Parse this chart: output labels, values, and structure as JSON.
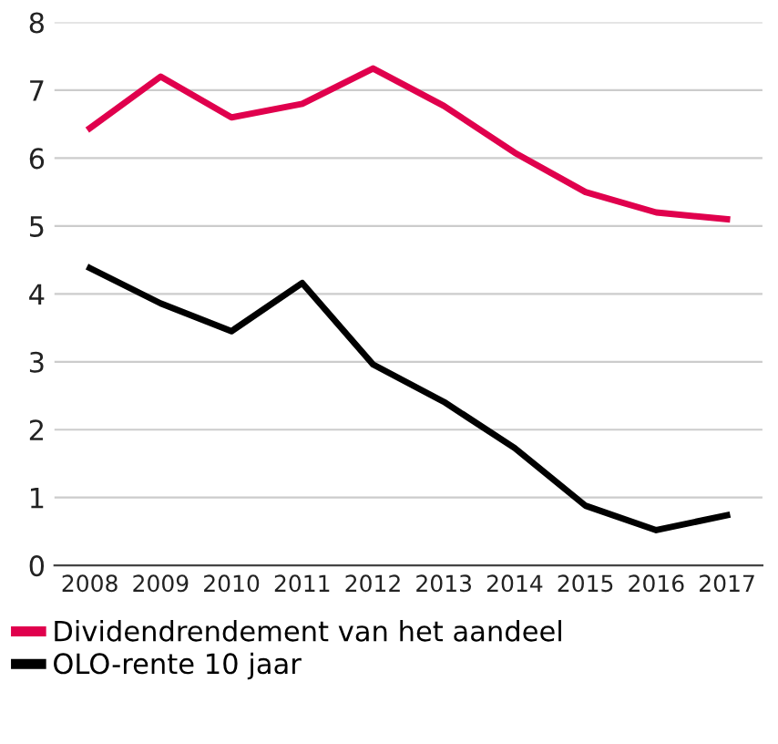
{
  "chart_data": {
    "type": "line",
    "categories": [
      "2008",
      "2009",
      "2010",
      "2011",
      "2012",
      "2013",
      "2014",
      "2015",
      "2016",
      "2017"
    ],
    "series": [
      {
        "name": "Dividendrendement van het aandeel",
        "color": "#e0004d",
        "values": [
          6.44,
          7.2,
          6.6,
          6.8,
          7.32,
          6.77,
          6.08,
          5.5,
          5.2,
          5.1
        ]
      },
      {
        "name": "OLO-rente 10 jaar",
        "color": "#000000",
        "values": [
          4.38,
          3.86,
          3.45,
          4.16,
          2.96,
          2.41,
          1.73,
          0.88,
          0.52,
          0.74
        ]
      }
    ],
    "ylim": [
      0,
      8
    ],
    "yticks": [
      0,
      1,
      2,
      3,
      4,
      5,
      6,
      7,
      8
    ],
    "grid": "y",
    "legend": "bottom",
    "marker": "none",
    "line_style": "solid"
  }
}
